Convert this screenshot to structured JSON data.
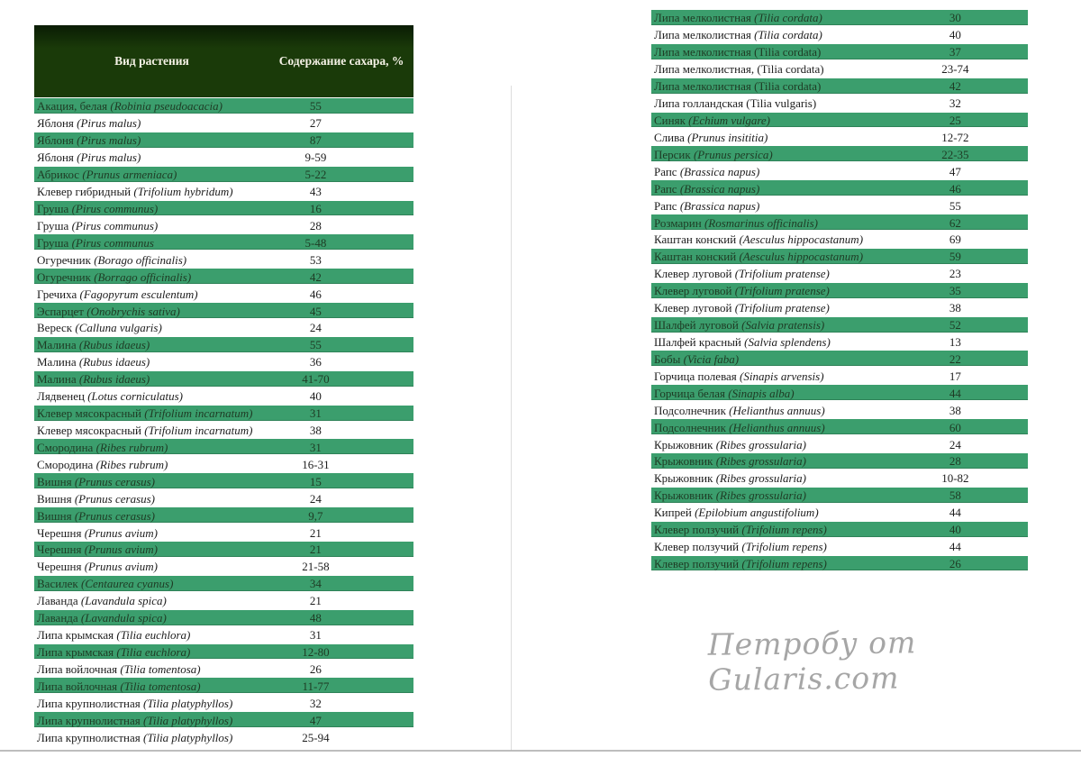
{
  "page": {
    "watermark": "Петробу от Gularis.com"
  },
  "colors": {
    "header_bg": "#1a3a09",
    "header_bg_top": "#0a1c04",
    "header_text": "#f5f2e6",
    "row_green": "#3b9e6d",
    "row_green_border": "#2f8258",
    "text_dark": "#1c1c1c",
    "text_on_green": "#1e3b24",
    "watermark_gray": "#a6a6a6",
    "page_line": "#b3b3b3"
  },
  "left_table": {
    "headers": {
      "plant": "Вид растения",
      "sugar": "Содержание сахара, %"
    },
    "rows": [
      {
        "name": "Акация, белая",
        "latin": "(Robinia pseudoacacia)",
        "value": "55"
      },
      {
        "name": "Яблоня",
        "latin": "(Pirus malus)",
        "value": "27"
      },
      {
        "name": "Яблоня",
        "latin": "(Pirus malus)",
        "value": "87"
      },
      {
        "name": "Яблоня",
        "latin": "(Pirus malus)",
        "value": "9-59"
      },
      {
        "name": "Абрикос",
        "latin": "(Prunus armeniaca)",
        "value": "5-22"
      },
      {
        "name": "Клевер гибридный",
        "latin": "(Trifolium hybridum)",
        "value": "43"
      },
      {
        "name": "Груша",
        "latin": "(Pirus communus)",
        "value": "16"
      },
      {
        "name": "Груша",
        "latin": "(Pirus communus)",
        "value": "28"
      },
      {
        "name": "Груша",
        "latin": "(Pirus communus",
        "value": "5-48"
      },
      {
        "name": "Огуречник",
        "latin": "(Borago officinalis)",
        "value": "53"
      },
      {
        "name": "Огуречник",
        "latin": "(Borrago officinalis)",
        "value": "42"
      },
      {
        "name": "Гречиха",
        "latin": "(Fagopyrum esculentum)",
        "value": "46"
      },
      {
        "name": "Эспарцет",
        "latin": "(Onobrychis sativa)",
        "value": "45"
      },
      {
        "name": "Вереск",
        "latin": "(Calluna vulgaris)",
        "value": "24"
      },
      {
        "name": "Малина",
        "latin": "(Rubus idaeus)",
        "value": "55"
      },
      {
        "name": "Малина",
        "latin": "(Rubus idaeus)",
        "value": "36"
      },
      {
        "name": "Малина",
        "latin": "(Rubus idaeus)",
        "value": "41-70"
      },
      {
        "name": "Лядвенец",
        "latin": "(Lotus corniculatus)",
        "value": "40"
      },
      {
        "name": "Клевер мясокрасный",
        "latin": "(Trifolium incarnatum)",
        "value": "31"
      },
      {
        "name": "Клевер мясокрасный",
        "latin": "(Trifolium incarnatum)",
        "value": "38"
      },
      {
        "name": "Смородина",
        "latin": "(Ribes rubrum)",
        "value": "31"
      },
      {
        "name": "Смородина",
        "latin": "(Ribes rubrum)",
        "value": "16-31"
      },
      {
        "name": "Вишня",
        "latin": "(Prunus cerasus)",
        "value": "15"
      },
      {
        "name": "Вишня",
        "latin": "(Prunus cerasus)",
        "value": "24"
      },
      {
        "name": "Вишня",
        "latin": "(Prunus cerasus)",
        "value": "9,7"
      },
      {
        "name": "Черешня",
        "latin": "(Prunus avium)",
        "value": "21"
      },
      {
        "name": "Черешня",
        "latin": "(Prunus avium)",
        "value": "21"
      },
      {
        "name": "Черешня",
        "latin": "(Prunus avium)",
        "value": "21-58"
      },
      {
        "name": "Василек",
        "latin": "(Centaurea cyanus)",
        "value": "34"
      },
      {
        "name": "Лаванда",
        "latin": "(Lavandula spica)",
        "value": "21"
      },
      {
        "name": "Лаванда",
        "latin": "(Lavandula spica)",
        "value": "48"
      },
      {
        "name": "Липа крымская",
        "latin": "(Tilia euchlora)",
        "value": "31"
      },
      {
        "name": "Липа крымская",
        "latin": "(Tilia euchlora)",
        "value": "12-80"
      },
      {
        "name": "Липа войлочная",
        "latin": "(Tilia tomentosa)",
        "value": "26"
      },
      {
        "name": "Липа войлочная",
        "latin": "(Tilia tomentosa)",
        "value": "11-77"
      },
      {
        "name": "Липа крупнолистная",
        "latin": "(Tilia platyphyllos)",
        "value": "32"
      },
      {
        "name": "Липа крупнолистная",
        "latin": "(Tilia platyphyllos)",
        "value": "47"
      },
      {
        "name": "Липа крупнолистная",
        "latin": "(Tilia platyphyllos)",
        "value": "25-94"
      }
    ]
  },
  "right_table": {
    "rows": [
      {
        "name": "Липа мелколистная",
        "latin": "(Tilia cordata)",
        "value": "30"
      },
      {
        "name": "Липа мелколистная",
        "latin": "(Tilia cordata)",
        "value": "40"
      },
      {
        "name": "Липа мелколистная",
        "latin": "(Tilia cordata)",
        "value": "37",
        "italic": false
      },
      {
        "name": "Липа мелколистная,",
        "latin": "(Tilia cordata)",
        "value": "23-74",
        "italic": false
      },
      {
        "name": "Липа мелколистная",
        "latin": "(Tilia cordata)",
        "value": "42",
        "italic": false
      },
      {
        "name": "Липа голландская",
        "latin": "(Tilia vulgaris)",
        "value": "32",
        "italic": false
      },
      {
        "name": "Синяк",
        "latin": "(Echium vulgare)",
        "value": "25"
      },
      {
        "name": "Слива",
        "latin": "(Prunus insititia)",
        "value": "12-72"
      },
      {
        "name": "Персик",
        "latin": "(Prunus persica)",
        "value": "22-35"
      },
      {
        "name": "Рапс",
        "latin": "(Brassica napus)",
        "value": "47"
      },
      {
        "name": "Рапс",
        "latin": "(Brassica napus)",
        "value": "46"
      },
      {
        "name": "Рапс",
        "latin": "(Brassica napus)",
        "value": "55"
      },
      {
        "name": "Розмарин",
        "latin": "(Rosmarinus officinalis)",
        "value": "62"
      },
      {
        "name": "Каштан конский",
        "latin": "(Aesculus hippocastanum)",
        "value": "69"
      },
      {
        "name": "Каштан конский",
        "latin": "(Aesculus hippocastanum)",
        "value": "59"
      },
      {
        "name": "Клевер луговой",
        "latin": "(Trifolium pratense)",
        "value": "23"
      },
      {
        "name": "Клевер луговой",
        "latin": "(Trifolium pratense)",
        "value": "35"
      },
      {
        "name": "Клевер луговой",
        "latin": "(Trifolium pratense)",
        "value": "38"
      },
      {
        "name": "Шалфей луговой",
        "latin": "(Salvia pratensis)",
        "value": "52"
      },
      {
        "name": "Шалфей красный",
        "latin": "(Salvia splendens)",
        "value": "13"
      },
      {
        "name": "Бобы",
        "latin": "(Vicia faba)",
        "value": "22"
      },
      {
        "name": "Горчица полевая",
        "latin": "(Sinapis arvensis)",
        "value": "17"
      },
      {
        "name": "Горчица белая",
        "latin": "(Sinapis alba)",
        "value": "44"
      },
      {
        "name": "Подсолнечник",
        "latin": "(Helianthus annuus)",
        "value": "38"
      },
      {
        "name": "Подсолнечник",
        "latin": "(Helianthus annuus)",
        "value": "60"
      },
      {
        "name": "Крыжовник",
        "latin": "(Ribes grossularia)",
        "value": "24"
      },
      {
        "name": "Крыжовник",
        "latin": "(Ribes grossularia)",
        "value": "28"
      },
      {
        "name": "Крыжовник",
        "latin": "(Ribes grossularia)",
        "value": "10-82"
      },
      {
        "name": "Крыжовник",
        "latin": "(Ribes grossularia)",
        "value": "58"
      },
      {
        "name": "Кипрей",
        "latin": "(Epilobium angustifolium)",
        "value": "44"
      },
      {
        "name": "Клевер ползучий",
        "latin": "(Trifolium repens)",
        "value": "40"
      },
      {
        "name": "Клевер ползучий",
        "latin": "(Trifolium repens)",
        "value": "44"
      },
      {
        "name": "Клевер ползучий",
        "latin": "(Trifolium repens)",
        "value": "26"
      }
    ]
  }
}
